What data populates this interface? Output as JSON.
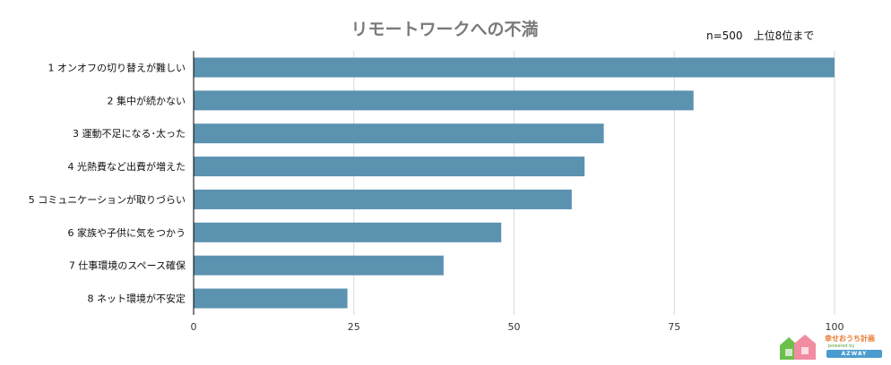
{
  "chart_data": {
    "type": "bar",
    "orientation": "horizontal",
    "title": "リモートワークへの不満",
    "note": "n=500　上位8位まで",
    "categories": [
      "1 オンオフの切り替えが難しい",
      "2 集中が続かない",
      "3 運動不足になる･太った",
      "4 光熱費など出費が増えた",
      "5 コミュニケーションが取りづらい",
      "6 家族や子供に気をつかう",
      "7 仕事環境のスペース確保",
      "8 ネット環境が不安定"
    ],
    "values": [
      100,
      78,
      64,
      61,
      59,
      48,
      39,
      24
    ],
    "xlim": [
      0,
      100
    ],
    "xticks": [
      "0",
      "25",
      "50",
      "75",
      "100"
    ],
    "grid": true,
    "bar_color": "#5b92b0",
    "grid_color": "#d9d9d9"
  },
  "logo": {
    "text": "幸せおうち計画",
    "sub": "powered by",
    "brand": "AZWAY"
  }
}
